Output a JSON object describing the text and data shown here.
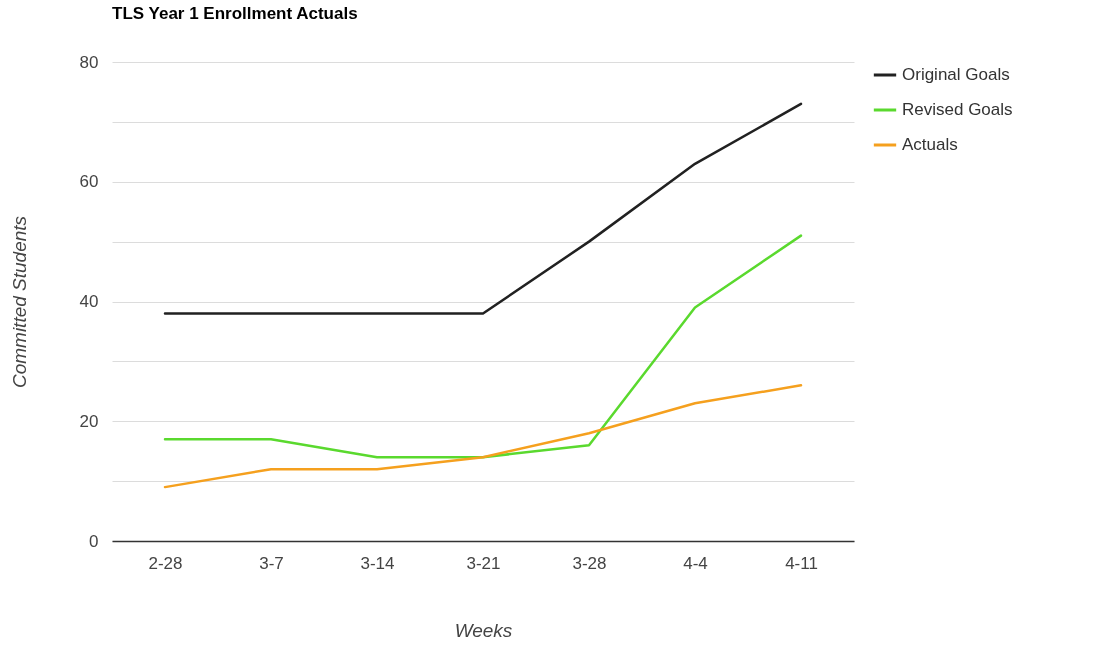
{
  "chart_data": {
    "type": "line",
    "title": "TLS Year 1 Enrollment Actuals",
    "xlabel": "Weeks",
    "ylabel": "Committed Students",
    "categories": [
      "2-28",
      "3-7",
      "3-14",
      "3-21",
      "3-28",
      "4-4",
      "4-11"
    ],
    "series": [
      {
        "name": "Original Goals",
        "color": "#212121",
        "values": [
          38,
          38,
          38,
          38,
          50,
          63,
          73
        ]
      },
      {
        "name": "Revised Goals",
        "color": "#5ad92e",
        "values": [
          17,
          17,
          14,
          14,
          16,
          39,
          51
        ]
      },
      {
        "name": "Actuals",
        "color": "#f5a01e",
        "values": [
          9,
          12,
          12,
          14,
          18,
          23,
          26
        ]
      }
    ],
    "ylim": [
      0,
      80
    ],
    "yticks": [
      0,
      {
        "value": 10,
        "label": null
      },
      20,
      {
        "value": 30,
        "label": null
      },
      40,
      {
        "value": 50,
        "label": null
      },
      60,
      {
        "value": 70,
        "label": null
      },
      80
    ],
    "grid": true,
    "legend": "right",
    "marker": "none",
    "line_style": "solid"
  }
}
